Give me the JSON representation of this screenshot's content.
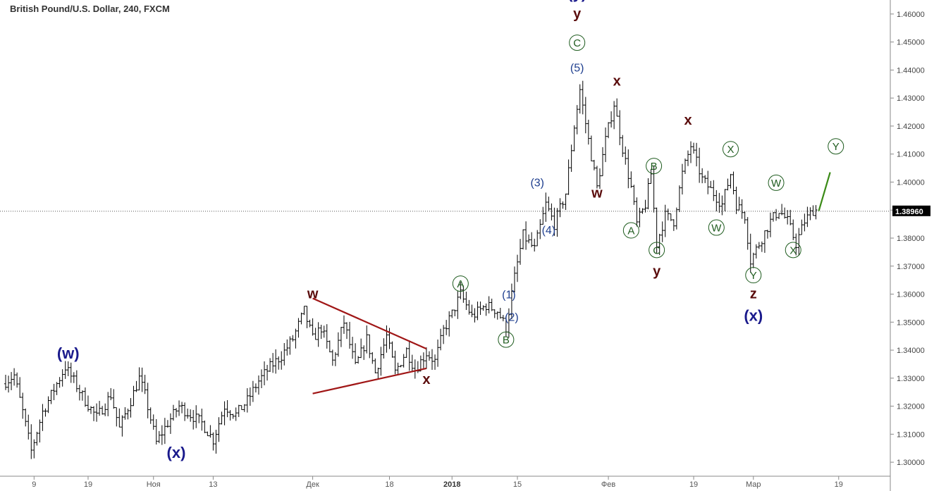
{
  "header": {
    "title": "British Pound/U.S. Dollar, 240, FXCM"
  },
  "price_badge": {
    "value": "1.38960",
    "price": 1.3896,
    "color": "#000000"
  },
  "colors": {
    "candle": "#000000",
    "triangle": "#a01616",
    "projection": "#3a8a16",
    "wave_blue": "#1a1a8c",
    "wave_brown": "#5a0c0c",
    "wave_circle": "#1f5c1f"
  },
  "chart_data": {
    "type": "candlestick",
    "title": "British Pound/U.S. Dollar, 240, FXCM",
    "timeframe": "240",
    "y_axis": {
      "position": "right",
      "ylim": [
        1.295,
        1.465
      ],
      "ticks": [
        1.3,
        1.31,
        1.32,
        1.33,
        1.34,
        1.35,
        1.36,
        1.37,
        1.38,
        1.39,
        1.4,
        1.41,
        1.42,
        1.43,
        1.44,
        1.45,
        1.46
      ],
      "tick_labels": [
        "1.30000",
        "1.31000",
        "1.32000",
        "1.33000",
        "1.34000",
        "1.35000",
        "1.36000",
        "1.37000",
        "1.38000",
        "1.39000",
        "1.40000",
        "1.41000",
        "1.42000",
        "1.43000",
        "1.44000",
        "1.45000",
        "1.46000"
      ]
    },
    "x_axis": {
      "bar_range": [
        0,
        300
      ],
      "ticks": [
        {
          "bar": 10,
          "label": "9",
          "bold": false
        },
        {
          "bar": 29,
          "label": "19",
          "bold": false
        },
        {
          "bar": 52,
          "label": "Ноя",
          "bold": false
        },
        {
          "bar": 73,
          "label": "13",
          "bold": false
        },
        {
          "bar": 108,
          "label": "Дек",
          "bold": false
        },
        {
          "bar": 135,
          "label": "18",
          "bold": false
        },
        {
          "bar": 157,
          "label": "2018",
          "bold": true
        },
        {
          "bar": 180,
          "label": "15",
          "bold": false
        },
        {
          "bar": 212,
          "label": "Фев",
          "bold": false
        },
        {
          "bar": 242,
          "label": "19",
          "bold": false
        },
        {
          "bar": 263,
          "label": "Мар",
          "bold": false
        },
        {
          "bar": 293,
          "label": "19",
          "bold": false
        }
      ]
    },
    "grid": false,
    "last_price_line": 1.3896,
    "price_path": [
      [
        0,
        1.328
      ],
      [
        4,
        1.331
      ],
      [
        7,
        1.318
      ],
      [
        10,
        1.304
      ],
      [
        14,
        1.318
      ],
      [
        18,
        1.326
      ],
      [
        22,
        1.334
      ],
      [
        25,
        1.329
      ],
      [
        29,
        1.322
      ],
      [
        33,
        1.316
      ],
      [
        38,
        1.324
      ],
      [
        41,
        1.312
      ],
      [
        45,
        1.322
      ],
      [
        48,
        1.33
      ],
      [
        50,
        1.324
      ],
      [
        54,
        1.307
      ],
      [
        58,
        1.314
      ],
      [
        62,
        1.32
      ],
      [
        66,
        1.317
      ],
      [
        70,
        1.314
      ],
      [
        74,
        1.308
      ],
      [
        78,
        1.32
      ],
      [
        82,
        1.317
      ],
      [
        86,
        1.322
      ],
      [
        90,
        1.329
      ],
      [
        94,
        1.334
      ],
      [
        98,
        1.338
      ],
      [
        102,
        1.344
      ],
      [
        106,
        1.354
      ],
      [
        109,
        1.344
      ],
      [
        112,
        1.348
      ],
      [
        116,
        1.336
      ],
      [
        120,
        1.35
      ],
      [
        124,
        1.334
      ],
      [
        128,
        1.344
      ],
      [
        131,
        1.332
      ],
      [
        135,
        1.345
      ],
      [
        138,
        1.332
      ],
      [
        142,
        1.34
      ],
      [
        145,
        1.333
      ],
      [
        149,
        1.339
      ],
      [
        152,
        1.336
      ],
      [
        155,
        1.347
      ],
      [
        158,
        1.353
      ],
      [
        161,
        1.36
      ],
      [
        165,
        1.352
      ],
      [
        170,
        1.356
      ],
      [
        174,
        1.354
      ],
      [
        177,
        1.348
      ],
      [
        180,
        1.366
      ],
      [
        183,
        1.381
      ],
      [
        187,
        1.376
      ],
      [
        191,
        1.392
      ],
      [
        194,
        1.385
      ],
      [
        198,
        1.396
      ],
      [
        201,
        1.42
      ],
      [
        203,
        1.433
      ],
      [
        206,
        1.415
      ],
      [
        209,
        1.398
      ],
      [
        212,
        1.415
      ],
      [
        215,
        1.428
      ],
      [
        218,
        1.412
      ],
      [
        221,
        1.398
      ],
      [
        223,
        1.385
      ],
      [
        226,
        1.392
      ],
      [
        228,
        1.403
      ],
      [
        230,
        1.378
      ],
      [
        233,
        1.388
      ],
      [
        236,
        1.386
      ],
      [
        239,
        1.403
      ],
      [
        242,
        1.413
      ],
      [
        246,
        1.401
      ],
      [
        250,
        1.396
      ],
      [
        253,
        1.392
      ],
      [
        256,
        1.403
      ],
      [
        258,
        1.392
      ],
      [
        261,
        1.388
      ],
      [
        263,
        1.372
      ],
      [
        267,
        1.38
      ],
      [
        270,
        1.386
      ],
      [
        273,
        1.39
      ],
      [
        276,
        1.386
      ],
      [
        279,
        1.378
      ],
      [
        282,
        1.386
      ],
      [
        285,
        1.39
      ]
    ],
    "candles": {
      "count": 286,
      "generated_from": "price_path"
    },
    "wave_labels": [
      {
        "text": "(w)",
        "style": "big-blue",
        "bar": 22,
        "price": 1.337
      },
      {
        "text": "(x)",
        "style": "big-blue",
        "bar": 60,
        "price": 1.3015
      },
      {
        "text": "w",
        "style": "brown",
        "bar": 108,
        "price": 1.3585
      },
      {
        "text": "x",
        "style": "brown",
        "bar": 148,
        "price": 1.328
      },
      {
        "text": "A",
        "style": "circle",
        "bar": 160,
        "price": 1.3625
      },
      {
        "text": "B",
        "style": "circle",
        "bar": 176,
        "price": 1.3425
      },
      {
        "text": "(1)",
        "style": "blue",
        "bar": 177,
        "price": 1.3585
      },
      {
        "text": "(2)",
        "style": "blue",
        "bar": 178,
        "price": 1.3505
      },
      {
        "text": "(3)",
        "style": "blue",
        "bar": 187,
        "price": 1.3985
      },
      {
        "text": "(4)",
        "style": "blue",
        "bar": 191,
        "price": 1.3815
      },
      {
        "text": "(5)",
        "style": "blue",
        "bar": 201,
        "price": 1.4395
      },
      {
        "text": "C",
        "style": "circle",
        "bar": 201,
        "price": 1.4485
      },
      {
        "text": "y",
        "style": "brown",
        "bar": 201,
        "price": 1.4585
      },
      {
        "text": "(y)",
        "style": "big-blue",
        "bar": 201,
        "price": 1.4655
      },
      {
        "text": "w",
        "style": "brown",
        "bar": 208,
        "price": 1.3945
      },
      {
        "text": "x",
        "style": "brown",
        "bar": 215,
        "price": 1.4345
      },
      {
        "text": "A",
        "style": "circle",
        "bar": 220,
        "price": 1.3815
      },
      {
        "text": "B",
        "style": "circle",
        "bar": 228,
        "price": 1.4045
      },
      {
        "text": "C",
        "style": "circle",
        "bar": 229,
        "price": 1.3745
      },
      {
        "text": "y",
        "style": "brown",
        "bar": 229,
        "price": 1.3665
      },
      {
        "text": "x",
        "style": "brown",
        "bar": 240,
        "price": 1.4205
      },
      {
        "text": "X",
        "style": "circle",
        "bar": 255,
        "price": 1.4105
      },
      {
        "text": "W",
        "style": "circle",
        "bar": 250,
        "price": 1.3825
      },
      {
        "text": "Y",
        "style": "circle",
        "bar": 263,
        "price": 1.3655
      },
      {
        "text": "z",
        "style": "brown",
        "bar": 263,
        "price": 1.3585
      },
      {
        "text": "(x)",
        "style": "big-blue",
        "bar": 263,
        "price": 1.3505
      },
      {
        "text": "W",
        "style": "circle",
        "bar": 271,
        "price": 1.3985
      },
      {
        "text": "X",
        "style": "circle",
        "bar": 277,
        "price": 1.3745
      },
      {
        "text": "Y",
        "style": "circle",
        "bar": 292,
        "price": 1.4115
      }
    ],
    "trend_lines": [
      {
        "from_bar": 108,
        "from_price": 1.3585,
        "to_bar": 148,
        "to_price": 1.3405,
        "color": "#a01616"
      },
      {
        "from_bar": 108,
        "from_price": 1.3245,
        "to_bar": 148,
        "to_price": 1.3335,
        "color": "#a01616"
      },
      {
        "from_bar": 286,
        "from_price": 1.3897,
        "to_bar": 290,
        "to_price": 1.4035,
        "color": "#3a8a16"
      }
    ]
  }
}
